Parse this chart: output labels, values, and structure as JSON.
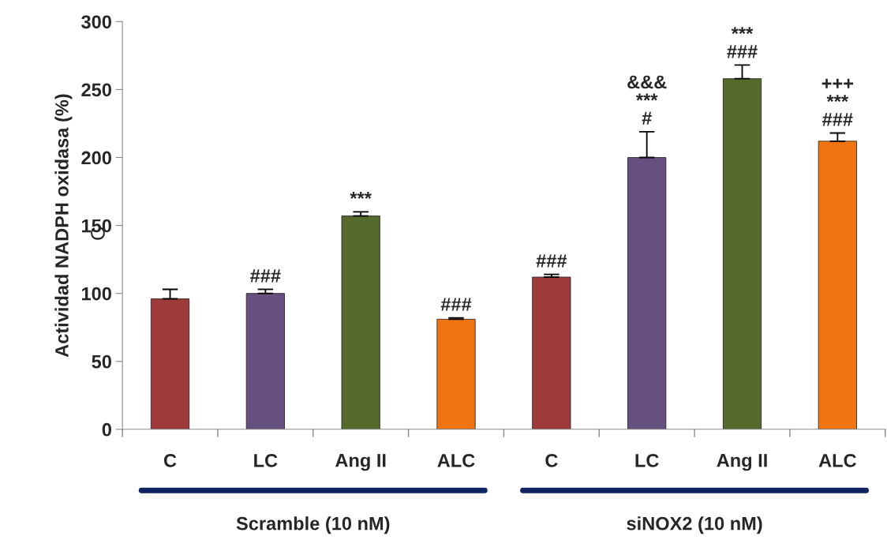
{
  "chart_data": {
    "type": "bar",
    "ylabel": "Actividad NADPH oxidasa (%)",
    "categories": [
      "C",
      "LC",
      "Ang II",
      "ALC",
      "C",
      "LC",
      "Ang II",
      "ALC"
    ],
    "values": [
      96,
      100,
      157,
      81,
      112,
      200,
      258,
      212
    ],
    "colors": [
      "#9e3a3a",
      "#66507f",
      "#566a2b",
      "#f07512",
      "#9e3a3a",
      "#66507f",
      "#566a2b",
      "#f07512"
    ],
    "errors": [
      [
        96,
        103
      ],
      [
        100,
        103
      ],
      [
        157,
        160
      ],
      [
        81,
        82
      ],
      [
        112,
        114
      ],
      [
        200,
        219
      ],
      [
        258,
        268
      ],
      [
        212,
        218
      ]
    ],
    "value_labels": [
      null,
      "###",
      "***",
      "###",
      "###",
      "&&&\n***\n#",
      "***\n###",
      "+++\n***\n###"
    ],
    "annotations": [
      "Scramble (10 nM)",
      "siNOX2 (10 nM)",
      "C"
    ],
    "ylim": [
      0,
      300
    ],
    "yticks": [
      0,
      50,
      100,
      150,
      200,
      250,
      300
    ],
    "grid": false,
    "legend": false
  }
}
